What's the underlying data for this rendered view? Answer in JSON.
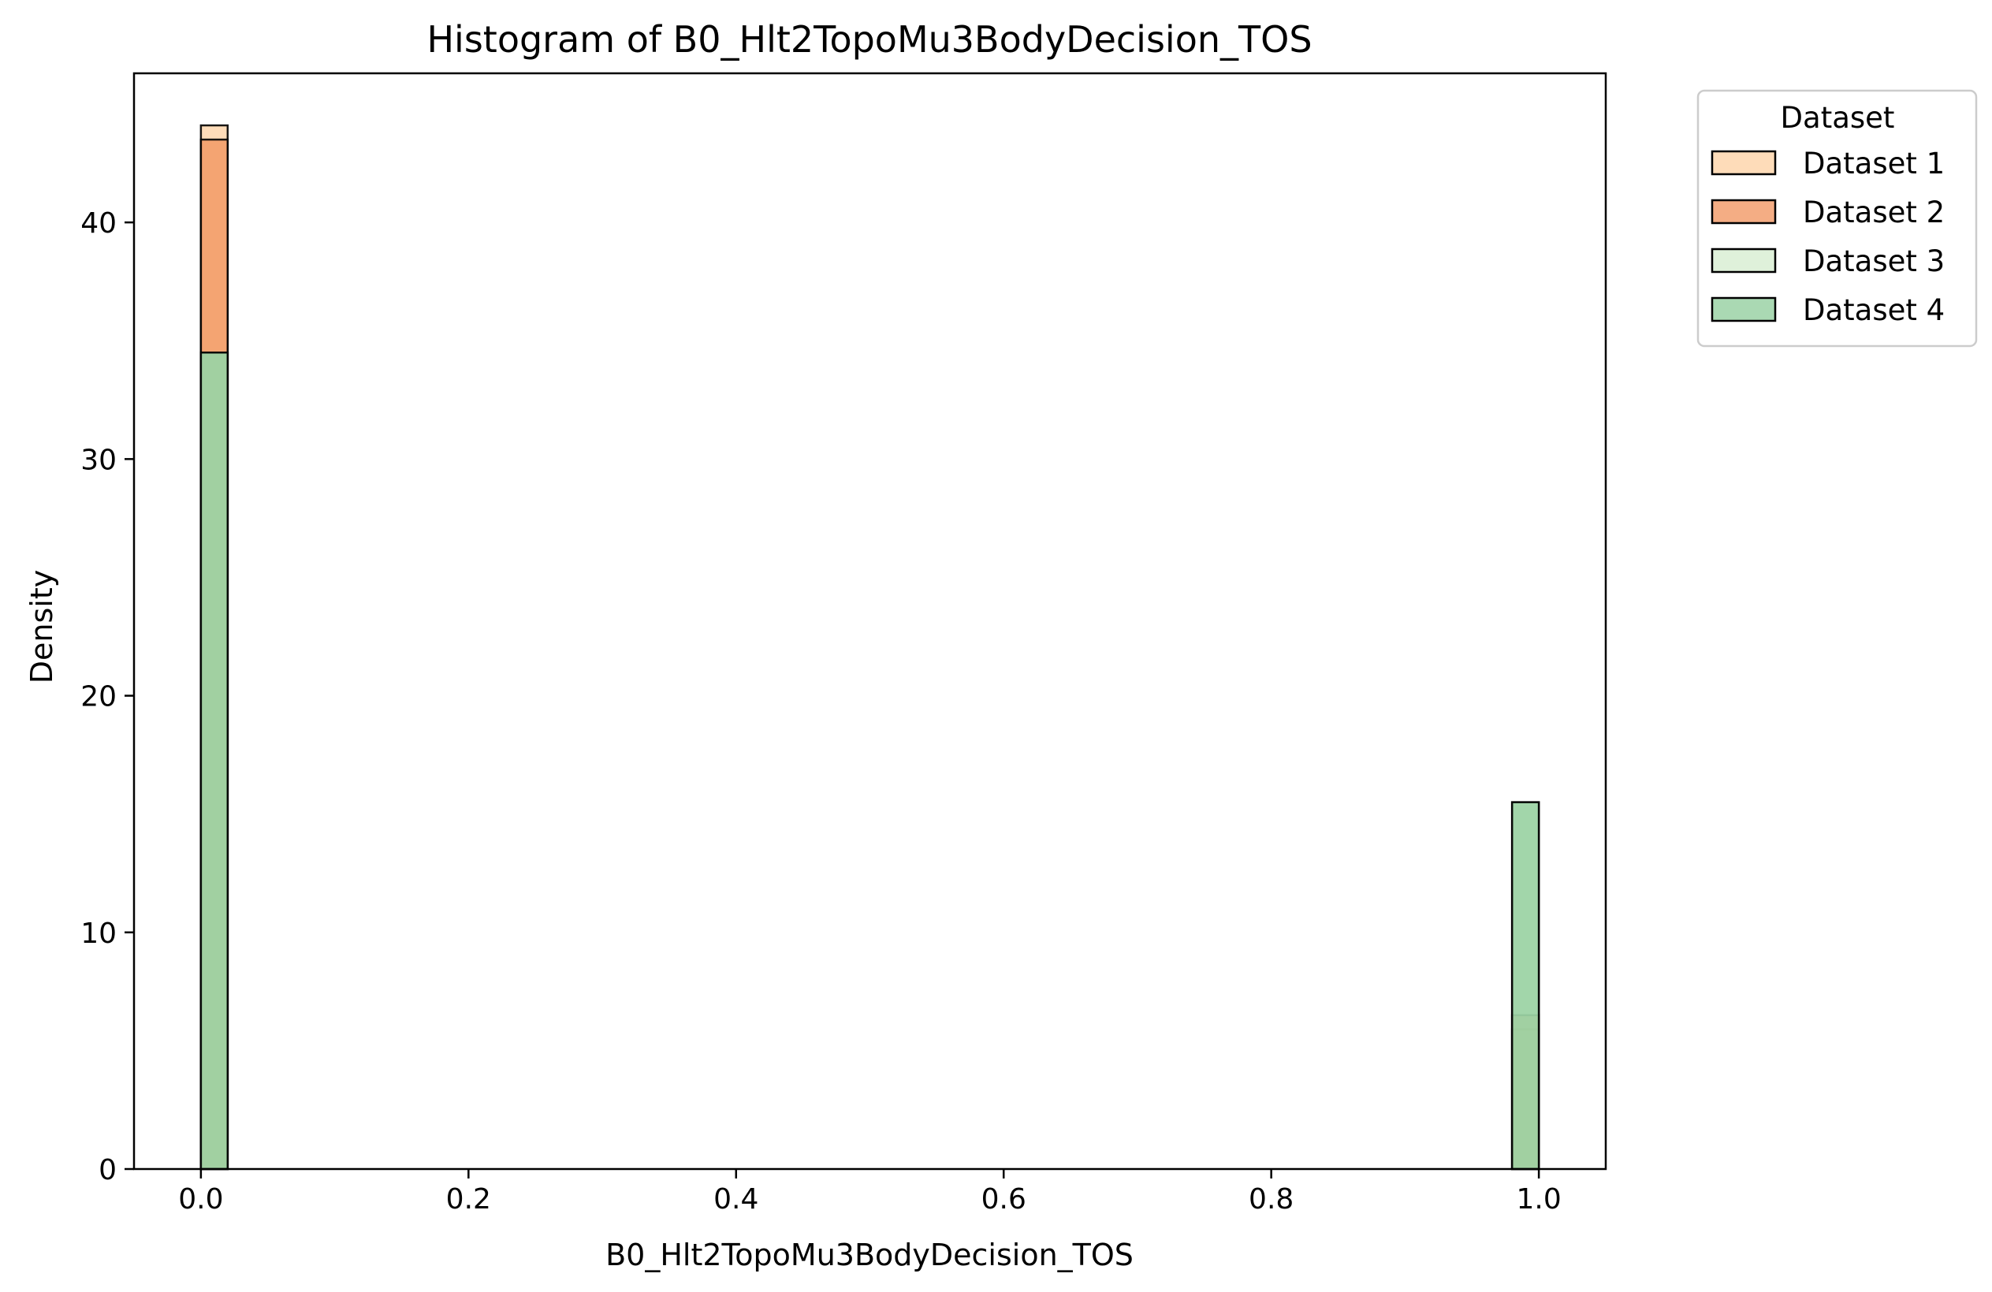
{
  "chart_data": {
    "type": "bar",
    "title": "Histogram of B0_Hlt2TopoMu3BodyDecision_TOS",
    "xlabel": "B0_Hlt2TopoMu3BodyDecision_TOS",
    "ylabel": "Density",
    "xlim": [
      -0.05,
      1.05
    ],
    "ylim": [
      0,
      46.3
    ],
    "xticks": [
      "0.0",
      "0.2",
      "0.4",
      "0.6",
      "0.8",
      "1.0"
    ],
    "yticks": [
      "0",
      "10",
      "20",
      "30",
      "40"
    ],
    "bin_width": 0.02,
    "grid": false,
    "legend": {
      "title": "Dataset",
      "placement": "outside right, top"
    },
    "series": [
      {
        "name": "Dataset 1",
        "color": "#fdd0a2",
        "bins": [
          {
            "x_start": 0.0,
            "value": 44.1
          },
          {
            "x_start": 0.98,
            "value": 5.9
          }
        ]
      },
      {
        "name": "Dataset 2",
        "color": "#f0915b",
        "bins": [
          {
            "x_start": 0.0,
            "value": 43.5
          },
          {
            "x_start": 0.98,
            "value": 6.5
          }
        ]
      },
      {
        "name": "Dataset 3",
        "color": "#d4ecce",
        "bins": [
          {
            "x_start": 0.0,
            "value": 34.5
          },
          {
            "x_start": 0.98,
            "value": 15.5
          }
        ]
      },
      {
        "name": "Dataset 4",
        "color": "#8dcc99",
        "bins": [
          {
            "x_start": 0.0,
            "value": 34.5
          },
          {
            "x_start": 0.98,
            "value": 15.5
          }
        ]
      }
    ]
  }
}
